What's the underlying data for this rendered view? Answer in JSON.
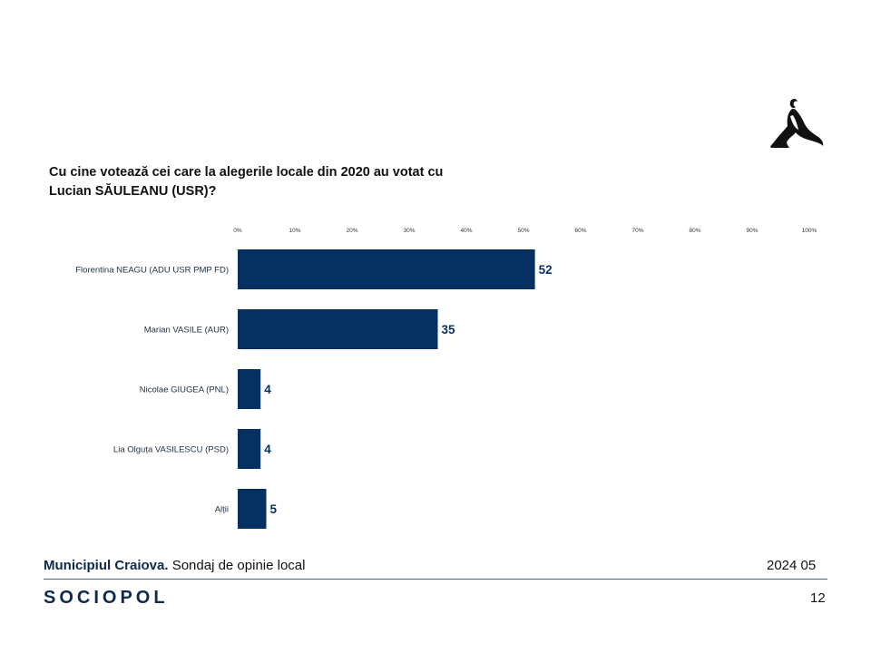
{
  "title": {
    "line1": "Cu cine votează cei care la alegerile locale din 2020 au votat cu",
    "line2": "Lucian SĂULEANU (USR)?"
  },
  "chart_data": {
    "type": "bar",
    "orientation": "horizontal",
    "title": "Cu cine votează cei care la alegerile locale din 2020 au votat cu Lucian SĂULEANU (USR)?",
    "categories": [
      "Florentina NEAGU (ADU USR PMP FD)",
      "Marian VASILE (AUR)",
      "Nicolae GIUGEA (PNL)",
      "Lia Olguța VASILESCU (PSD)",
      "Alții"
    ],
    "values": [
      52,
      35,
      4,
      4,
      5
    ],
    "value_labels": [
      "52",
      "35",
      "4",
      "4",
      "5"
    ],
    "xlim": [
      0,
      100
    ],
    "ticks": [
      "0%",
      "10%",
      "20%",
      "30%",
      "40%",
      "50%",
      "60%",
      "70%",
      "80%",
      "90%",
      "100%"
    ],
    "tick_values": [
      0,
      10,
      20,
      30,
      40,
      50,
      60,
      70,
      80,
      90,
      100
    ],
    "bar_color": "#06305f",
    "label_color": "#06305f",
    "grid": false
  },
  "footer": {
    "bold_text": "Municipiul Craiova.",
    "text": " Sondaj de opinie local",
    "date": "2024 05",
    "brand": "SOCIOPOL",
    "page_number": "12"
  },
  "logo": {
    "icon": "thinker-silhouette-icon"
  }
}
